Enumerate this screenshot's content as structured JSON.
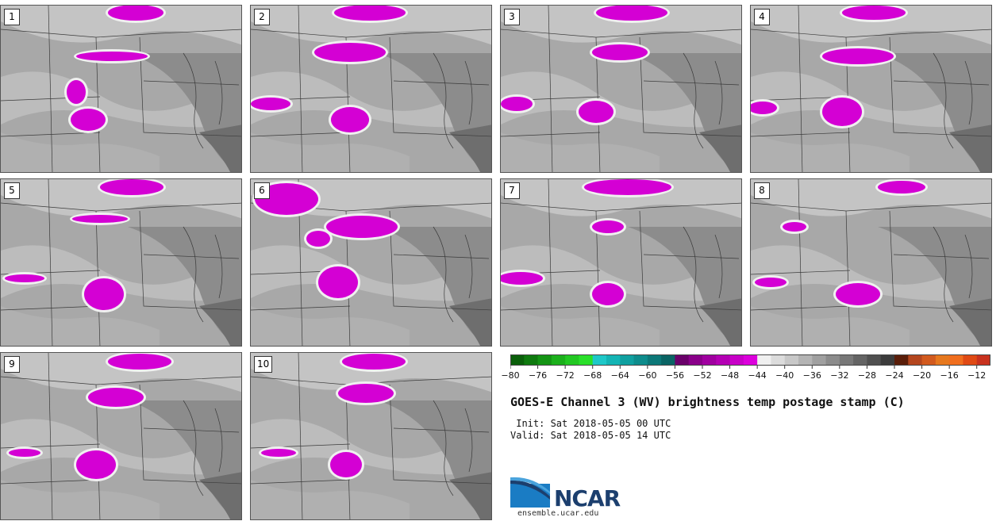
{
  "chart_data": {
    "type": "heatmap",
    "title": "GOES-E Channel 3 (WV) brightness temp postage stamp (C)",
    "init_text": " Init: Sat 2018-05-05 00 UTC",
    "valid_text": "Valid: Sat 2018-05-05 14 UTC",
    "panels": [
      "1",
      "2",
      "3",
      "4",
      "5",
      "6",
      "7",
      "8",
      "9",
      "10"
    ],
    "colorbar": {
      "units": "C",
      "range": [
        -80,
        -10
      ],
      "step": 2,
      "tick_values": [
        -80,
        -76,
        -72,
        -68,
        -64,
        -60,
        -56,
        -52,
        -48,
        -44,
        -40,
        -36,
        -32,
        -28,
        -24,
        -20,
        -16,
        -12
      ],
      "tick_labels": [
        "−80",
        "−76",
        "−72",
        "−68",
        "−64",
        "−60",
        "−56",
        "−52",
        "−48",
        "−44",
        "−40",
        "−36",
        "−32",
        "−28",
        "−24",
        "−20",
        "−16",
        "−12"
      ],
      "colors": [
        "#0a5f0a",
        "#0f7a0f",
        "#149414",
        "#1bb01b",
        "#22c822",
        "#2ae02a",
        "#1ec8c8",
        "#14b4b4",
        "#10a0a0",
        "#0e8c8c",
        "#0c7878",
        "#0a6464",
        "#6a006a",
        "#8a008a",
        "#a000a0",
        "#b400b4",
        "#c800c8",
        "#dc00dc",
        "#f0f0f0",
        "#dcdcdc",
        "#c8c8c8",
        "#b4b4b4",
        "#a0a0a0",
        "#8c8c8c",
        "#787878",
        "#646464",
        "#505050",
        "#3c3c3c",
        "#5a1e0a",
        "#b4461e",
        "#d25a1e",
        "#e6781e",
        "#f06e1e",
        "#e04a14",
        "#c8321e"
      ]
    }
  },
  "footer": {
    "logo_text": "NCAR",
    "url": "ensemble.ucar.edu"
  }
}
